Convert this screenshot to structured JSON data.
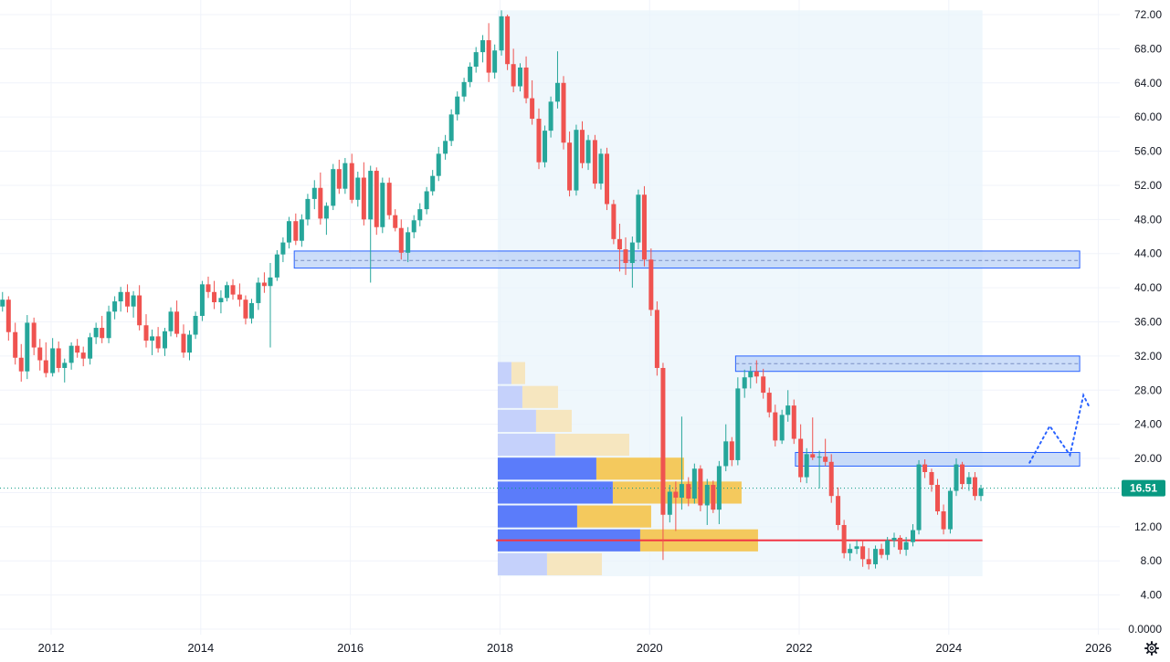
{
  "chart_data": {
    "type": "candlestick",
    "timeframe_note": "monthly candles",
    "colors": {
      "up": "#26a69a",
      "down": "#ef5350",
      "grid": "#f0f3fa",
      "zone_fill": "#bbd2f7",
      "zone_border": "#2962ff",
      "profile_buy": "#5b7cfa",
      "profile_sell": "#f4c95d",
      "profile_buy_light": "#c5d1fb",
      "profile_sell_light": "#f6e6bf",
      "range_bg": "#e8f4fb",
      "support_line": "#f23645",
      "current_price": "#089981",
      "projection": "#2962ff"
    },
    "y_axis": {
      "min": 0,
      "max": 72,
      "ticks": [
        "72.00",
        "68.00",
        "64.00",
        "60.00",
        "56.00",
        "52.00",
        "48.00",
        "44.00",
        "40.00",
        "36.00",
        "32.00",
        "28.00",
        "24.00",
        "20.00",
        "16.00",
        "12.00",
        "8.00",
        "4.00",
        "0.0000"
      ],
      "tick_values": [
        72,
        68,
        64,
        60,
        56,
        52,
        48,
        44,
        40,
        36,
        32,
        28,
        24,
        20,
        16,
        12,
        8,
        4,
        0
      ]
    },
    "x_axis": {
      "ticks": [
        "2012",
        "2014",
        "2016",
        "2018",
        "2020",
        "2022",
        "2024",
        "2026"
      ],
      "tick_years": [
        2012,
        2014,
        2016,
        2018,
        2020,
        2022,
        2024,
        2026
      ],
      "start": 2011.35,
      "end": 2026.6
    },
    "current_price": {
      "value": 16.51,
      "label": "16.51"
    },
    "zones": [
      {
        "name": "zone-44",
        "x_from": 2015.25,
        "x_to": 2025.75,
        "low": 42.3,
        "high": 44.3,
        "mid": 43.2
      },
      {
        "name": "zone-31",
        "x_from": 2021.15,
        "x_to": 2025.75,
        "low": 30.2,
        "high": 32.0,
        "mid": 31.1
      },
      {
        "name": "zone-20",
        "x_from": 2021.95,
        "x_to": 2025.75,
        "low": 19.1,
        "high": 20.7,
        "mid": null
      }
    ],
    "support_line": {
      "value": 10.4,
      "x_from": 2017.95,
      "x_to": 2024.45
    },
    "volume_profile": {
      "x_from": 2017.97,
      "x_to": 2024.45,
      "y_low": 6.2,
      "y_high": 72.5,
      "rows": [
        {
          "low": 6.2,
          "high": 9.0,
          "buy": 0.18,
          "sell": 0.2,
          "light": true
        },
        {
          "low": 9.0,
          "high": 11.8,
          "buy": 0.52,
          "sell": 0.43,
          "light": false
        },
        {
          "low": 11.8,
          "high": 14.6,
          "buy": 0.29,
          "sell": 0.27,
          "light": false
        },
        {
          "low": 14.6,
          "high": 17.4,
          "buy": 0.42,
          "sell": 0.47,
          "light": false
        },
        {
          "low": 17.4,
          "high": 20.2,
          "buy": 0.36,
          "sell": 0.32,
          "light": false
        },
        {
          "low": 20.2,
          "high": 23.0,
          "buy": 0.21,
          "sell": 0.27,
          "light": true
        },
        {
          "low": 23.0,
          "high": 25.8,
          "buy": 0.14,
          "sell": 0.13,
          "light": true
        },
        {
          "low": 25.8,
          "high": 28.6,
          "buy": 0.09,
          "sell": 0.13,
          "light": true
        },
        {
          "low": 28.6,
          "high": 31.4,
          "buy": 0.05,
          "sell": 0.05,
          "light": true
        }
      ]
    },
    "projection_path": [
      [
        2025.08,
        19.5
      ],
      [
        2025.35,
        23.8
      ],
      [
        2025.62,
        20.4
      ],
      [
        2025.8,
        27.4
      ],
      [
        2025.88,
        26.0
      ]
    ],
    "candles": [
      [
        2011.35,
        37.8,
        39.5,
        37.2,
        38.6
      ],
      [
        2011.43,
        38.6,
        39.0,
        33.8,
        34.8
      ],
      [
        2011.52,
        34.8,
        35.9,
        31.0,
        31.8
      ],
      [
        2011.6,
        31.8,
        33.4,
        29.0,
        30.2
      ],
      [
        2011.68,
        30.2,
        36.8,
        29.3,
        35.9
      ],
      [
        2011.77,
        35.9,
        36.5,
        32.1,
        33.0
      ],
      [
        2011.85,
        33.0,
        34.0,
        30.3,
        31.5
      ],
      [
        2011.93,
        31.5,
        33.6,
        29.5,
        30.0
      ],
      [
        2012.02,
        30.0,
        34.1,
        29.6,
        32.9
      ],
      [
        2012.1,
        32.9,
        33.7,
        30.1,
        30.6
      ],
      [
        2012.18,
        30.6,
        31.7,
        28.9,
        31.2
      ],
      [
        2012.27,
        31.2,
        33.6,
        30.4,
        33.2
      ],
      [
        2012.35,
        33.2,
        34.0,
        31.8,
        32.4
      ],
      [
        2012.43,
        32.4,
        33.1,
        30.8,
        31.7
      ],
      [
        2012.52,
        31.7,
        34.7,
        31.0,
        34.2
      ],
      [
        2012.6,
        34.2,
        35.9,
        33.4,
        35.3
      ],
      [
        2012.68,
        35.3,
        36.7,
        33.5,
        34.1
      ],
      [
        2012.77,
        34.1,
        37.9,
        33.5,
        37.2
      ],
      [
        2012.85,
        37.2,
        39.0,
        36.3,
        38.4
      ],
      [
        2012.93,
        38.4,
        40.1,
        37.2,
        39.5
      ],
      [
        2013.02,
        39.5,
        40.4,
        37.1,
        37.8
      ],
      [
        2013.1,
        37.8,
        39.6,
        36.5,
        39.1
      ],
      [
        2013.18,
        39.1,
        40.3,
        35.0,
        35.6
      ],
      [
        2013.27,
        35.6,
        36.9,
        33.0,
        33.8
      ],
      [
        2013.35,
        33.8,
        35.1,
        32.1,
        34.3
      ],
      [
        2013.43,
        34.3,
        35.4,
        32.4,
        32.9
      ],
      [
        2013.52,
        32.9,
        35.3,
        32.0,
        34.9
      ],
      [
        2013.6,
        34.9,
        37.7,
        34.3,
        37.2
      ],
      [
        2013.68,
        37.2,
        38.5,
        34.2,
        34.6
      ],
      [
        2013.77,
        34.6,
        35.7,
        31.8,
        32.4
      ],
      [
        2013.85,
        32.4,
        35.0,
        31.5,
        34.5
      ],
      [
        2013.93,
        34.5,
        37.2,
        34.0,
        36.7
      ],
      [
        2014.02,
        36.7,
        40.8,
        36.1,
        40.4
      ],
      [
        2014.1,
        40.4,
        41.3,
        38.8,
        39.5
      ],
      [
        2014.18,
        39.5,
        40.8,
        37.5,
        38.3
      ],
      [
        2014.27,
        38.3,
        39.7,
        37.0,
        38.8
      ],
      [
        2014.35,
        38.8,
        40.7,
        38.4,
        40.3
      ],
      [
        2014.43,
        40.3,
        41.0,
        38.6,
        39.2
      ],
      [
        2014.52,
        39.2,
        40.5,
        37.8,
        38.6
      ],
      [
        2014.6,
        38.6,
        39.1,
        35.7,
        36.4
      ],
      [
        2014.68,
        36.4,
        38.7,
        35.8,
        38.2
      ],
      [
        2014.77,
        38.2,
        41.2,
        37.4,
        40.6
      ],
      [
        2014.85,
        40.6,
        41.8,
        39.4,
        40.2
      ],
      [
        2014.93,
        40.2,
        42.9,
        33.0,
        41.2
      ],
      [
        2015.02,
        41.2,
        44.4,
        40.8,
        43.9
      ],
      [
        2015.1,
        43.9,
        45.9,
        43.0,
        45.3
      ],
      [
        2015.18,
        45.3,
        48.3,
        44.6,
        47.8
      ],
      [
        2015.27,
        47.8,
        48.7,
        45.0,
        45.5
      ],
      [
        2015.35,
        45.5,
        48.6,
        44.8,
        48.0
      ],
      [
        2015.43,
        48.0,
        51.0,
        47.3,
        50.4
      ],
      [
        2015.52,
        50.4,
        52.6,
        49.2,
        51.7
      ],
      [
        2015.6,
        51.7,
        53.5,
        47.4,
        48.1
      ],
      [
        2015.68,
        48.1,
        50.0,
        46.2,
        49.6
      ],
      [
        2015.77,
        49.6,
        54.5,
        49.1,
        53.9
      ],
      [
        2015.85,
        53.9,
        55.0,
        51.0,
        51.6
      ],
      [
        2015.93,
        51.6,
        55.2,
        51.0,
        54.6
      ],
      [
        2016.02,
        54.6,
        55.7,
        49.9,
        50.3
      ],
      [
        2016.1,
        50.3,
        53.6,
        49.5,
        52.9
      ],
      [
        2016.18,
        52.9,
        54.7,
        47.3,
        48.0
      ],
      [
        2016.27,
        48.0,
        54.3,
        40.6,
        53.7
      ],
      [
        2016.35,
        53.7,
        54.1,
        46.2,
        47.1
      ],
      [
        2016.43,
        47.1,
        52.9,
        46.4,
        52.3
      ],
      [
        2016.52,
        52.3,
        52.9,
        48.0,
        48.5
      ],
      [
        2016.6,
        48.5,
        49.2,
        46.6,
        47.0
      ],
      [
        2016.68,
        47.0,
        48.0,
        43.3,
        44.1
      ],
      [
        2016.77,
        44.1,
        47.1,
        43.0,
        46.5
      ],
      [
        2016.85,
        46.5,
        48.5,
        45.8,
        47.9
      ],
      [
        2016.93,
        47.9,
        49.9,
        47.2,
        49.2
      ],
      [
        2017.02,
        49.2,
        51.8,
        48.6,
        51.3
      ],
      [
        2017.1,
        51.3,
        53.8,
        50.8,
        53.1
      ],
      [
        2017.18,
        53.1,
        56.5,
        52.5,
        55.7
      ],
      [
        2017.27,
        55.7,
        57.9,
        55.0,
        57.2
      ],
      [
        2017.35,
        57.2,
        60.9,
        56.6,
        60.3
      ],
      [
        2017.43,
        60.3,
        63.0,
        59.6,
        62.4
      ],
      [
        2017.52,
        62.4,
        64.6,
        61.8,
        64.1
      ],
      [
        2017.6,
        64.1,
        66.4,
        63.5,
        65.9
      ],
      [
        2017.68,
        65.9,
        68.2,
        65.2,
        67.6
      ],
      [
        2017.77,
        67.6,
        69.6,
        66.4,
        69.0
      ],
      [
        2017.85,
        69.0,
        71.0,
        64.1,
        65.2
      ],
      [
        2017.93,
        65.2,
        68.5,
        64.5,
        67.8
      ],
      [
        2018.02,
        67.8,
        72.5,
        67.2,
        71.8
      ],
      [
        2018.1,
        71.8,
        72.0,
        65.5,
        66.2
      ],
      [
        2018.18,
        66.2,
        68.0,
        62.9,
        63.6
      ],
      [
        2018.27,
        63.6,
        66.3,
        63.0,
        65.8
      ],
      [
        2018.35,
        65.8,
        67.1,
        61.6,
        62.2
      ],
      [
        2018.43,
        62.2,
        64.3,
        59.1,
        59.8
      ],
      [
        2018.52,
        59.8,
        61.0,
        53.9,
        54.7
      ],
      [
        2018.6,
        54.7,
        59.0,
        54.1,
        58.4
      ],
      [
        2018.68,
        58.4,
        62.4,
        57.6,
        61.8
      ],
      [
        2018.77,
        61.8,
        67.7,
        61.0,
        64.0
      ],
      [
        2018.85,
        64.0,
        64.8,
        56.2,
        57.0
      ],
      [
        2018.93,
        57.0,
        58.3,
        50.7,
        51.4
      ],
      [
        2019.02,
        51.4,
        59.1,
        50.8,
        58.5
      ],
      [
        2019.1,
        58.5,
        59.5,
        54.0,
        54.6
      ],
      [
        2019.18,
        54.6,
        57.9,
        53.8,
        57.3
      ],
      [
        2019.27,
        57.3,
        57.9,
        51.6,
        52.2
      ],
      [
        2019.35,
        52.2,
        56.3,
        51.5,
        55.7
      ],
      [
        2019.43,
        55.7,
        56.4,
        49.1,
        49.8
      ],
      [
        2019.52,
        49.8,
        50.3,
        45.1,
        45.7
      ],
      [
        2019.6,
        45.7,
        47.5,
        41.9,
        44.5
      ],
      [
        2019.68,
        44.5,
        45.9,
        41.5,
        42.9
      ],
      [
        2019.77,
        42.9,
        46.0,
        40.0,
        45.3
      ],
      [
        2019.85,
        45.3,
        51.5,
        44.5,
        50.9
      ],
      [
        2019.93,
        50.9,
        51.9,
        42.5,
        43.3
      ],
      [
        2020.02,
        43.3,
        44.6,
        36.7,
        37.4
      ],
      [
        2020.1,
        37.4,
        38.4,
        29.7,
        30.6
      ],
      [
        2020.18,
        30.6,
        31.2,
        8.1,
        13.4
      ],
      [
        2020.27,
        13.4,
        16.9,
        12.5,
        16.1
      ],
      [
        2020.35,
        16.1,
        17.3,
        11.5,
        15.4
      ],
      [
        2020.43,
        15.4,
        24.9,
        14.0,
        17.0
      ],
      [
        2020.52,
        17.0,
        17.8,
        14.4,
        15.3
      ],
      [
        2020.6,
        15.3,
        19.4,
        14.7,
        18.8
      ],
      [
        2020.68,
        18.8,
        19.2,
        13.8,
        14.5
      ],
      [
        2020.77,
        14.5,
        17.6,
        12.2,
        16.9
      ],
      [
        2020.85,
        16.9,
        17.4,
        13.6,
        14.0
      ],
      [
        2020.93,
        14.0,
        19.7,
        12.3,
        19.1
      ],
      [
        2021.02,
        19.1,
        24.0,
        18.5,
        22.0
      ],
      [
        2021.1,
        22.0,
        22.5,
        19.1,
        19.8
      ],
      [
        2021.18,
        19.8,
        29.5,
        19.2,
        28.2
      ],
      [
        2021.27,
        28.2,
        30.4,
        27.1,
        29.5
      ],
      [
        2021.35,
        29.5,
        30.8,
        28.2,
        30.2
      ],
      [
        2021.43,
        30.2,
        31.5,
        28.8,
        29.6
      ],
      [
        2021.52,
        29.6,
        30.5,
        27.0,
        27.7
      ],
      [
        2021.6,
        27.7,
        28.3,
        24.8,
        25.4
      ],
      [
        2021.68,
        25.4,
        26.3,
        21.4,
        22.1
      ],
      [
        2021.77,
        22.1,
        25.7,
        21.7,
        25.1
      ],
      [
        2021.85,
        25.1,
        28.0,
        24.3,
        26.2
      ],
      [
        2021.93,
        26.2,
        26.9,
        21.7,
        22.3
      ],
      [
        2022.02,
        22.3,
        24.0,
        17.2,
        17.8
      ],
      [
        2022.1,
        17.8,
        21.2,
        17.1,
        20.5
      ],
      [
        2022.18,
        20.5,
        24.8,
        19.8,
        20.1
      ],
      [
        2022.27,
        20.1,
        20.9,
        16.5,
        20.2
      ],
      [
        2022.35,
        20.2,
        22.3,
        19.1,
        19.6
      ],
      [
        2022.43,
        19.6,
        20.5,
        14.8,
        15.6
      ],
      [
        2022.52,
        15.6,
        16.6,
        11.6,
        12.2
      ],
      [
        2022.6,
        12.2,
        12.8,
        8.3,
        8.9
      ],
      [
        2022.68,
        8.9,
        10.0,
        8.0,
        9.4
      ],
      [
        2022.77,
        9.4,
        10.4,
        8.8,
        9.7
      ],
      [
        2022.85,
        9.7,
        10.4,
        7.3,
        8.2
      ],
      [
        2022.93,
        8.2,
        9.5,
        7.0,
        7.6
      ],
      [
        2023.02,
        7.6,
        9.8,
        7.1,
        9.4
      ],
      [
        2023.1,
        9.4,
        10.0,
        8.3,
        8.7
      ],
      [
        2023.18,
        8.7,
        10.8,
        8.1,
        10.4
      ],
      [
        2023.27,
        10.4,
        11.3,
        9.6,
        10.7
      ],
      [
        2023.35,
        10.7,
        11.0,
        8.8,
        9.3
      ],
      [
        2023.43,
        9.3,
        10.8,
        8.6,
        10.2
      ],
      [
        2023.52,
        10.2,
        12.3,
        9.7,
        11.6
      ],
      [
        2023.6,
        11.6,
        19.8,
        11.1,
        19.3
      ],
      [
        2023.68,
        19.3,
        19.9,
        17.7,
        18.4
      ],
      [
        2023.77,
        18.4,
        18.8,
        16.1,
        16.9
      ],
      [
        2023.85,
        16.9,
        17.6,
        13.4,
        13.8
      ],
      [
        2023.93,
        13.8,
        14.6,
        11.1,
        11.7
      ],
      [
        2024.02,
        11.7,
        16.6,
        11.2,
        16.2
      ],
      [
        2024.1,
        16.2,
        20.0,
        15.6,
        19.3
      ],
      [
        2024.18,
        19.3,
        19.6,
        16.4,
        17.0
      ],
      [
        2024.27,
        17.0,
        18.4,
        16.2,
        17.8
      ],
      [
        2024.35,
        17.8,
        18.4,
        15.1,
        15.6
      ],
      [
        2024.43,
        15.6,
        16.9,
        15.0,
        16.5
      ]
    ]
  }
}
